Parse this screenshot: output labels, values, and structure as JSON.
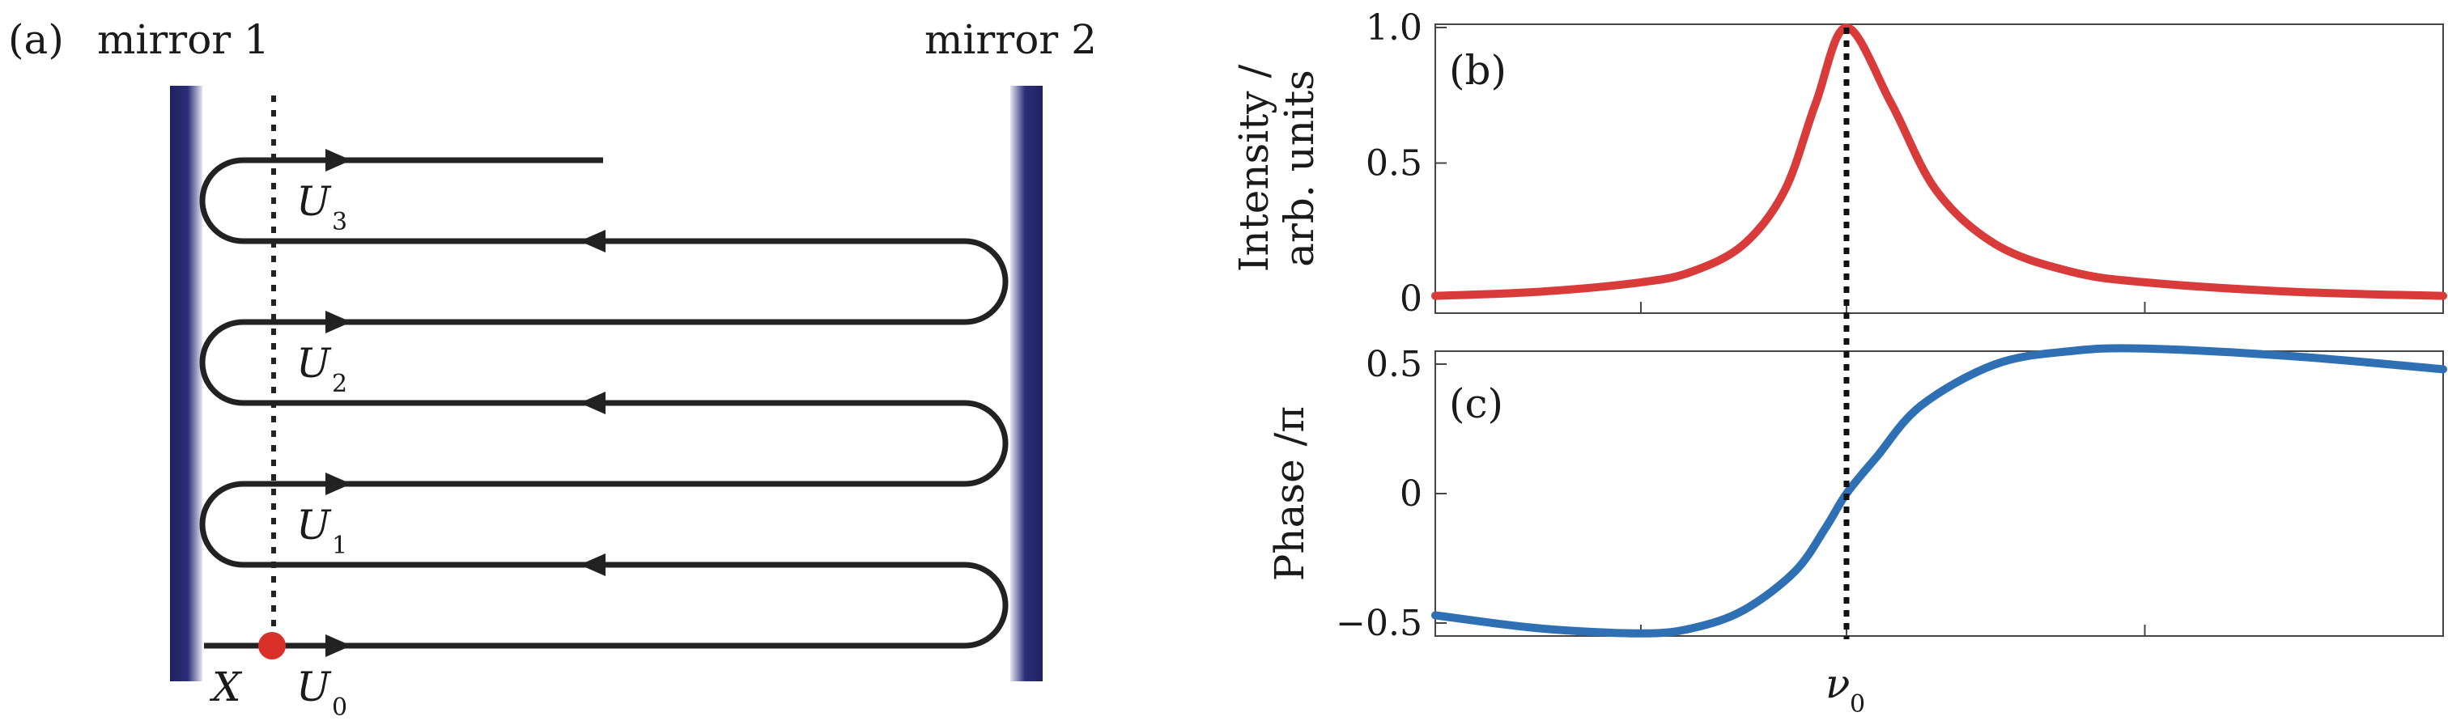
{
  "panel_a": {
    "panel_label": "(a)",
    "mirror1_label": "mirror 1",
    "mirror2_label": "mirror 2",
    "point_label": "X",
    "field_symbol": "U",
    "field_subscripts": [
      "0",
      "1",
      "2",
      "3"
    ],
    "mirror_color": "#1f2160",
    "path_color": "#222222",
    "point_color": "#d9302a"
  },
  "chart_data": [
    {
      "type": "line",
      "panel_label": "(b)",
      "xlabel": "",
      "ylabel_line1": "Intensity /",
      "ylabel_line2": "arb. units",
      "ylim": [
        0,
        1.0
      ],
      "yticks": [
        "0",
        "0.5",
        "1.0"
      ],
      "xticks": [
        {
          "value": 0,
          "label_symbol": "ν",
          "label_sub": "0"
        }
      ],
      "x": [
        -4.0,
        -3.0,
        -2.0,
        -1.5,
        -1.0,
        -0.6,
        -0.3,
        0.0,
        0.3,
        0.6,
        1.0,
        1.5,
        2.0,
        3.0,
        4.0
      ],
      "series": [
        {
          "values": [
            0.01,
            0.025,
            0.06,
            0.1,
            0.2,
            0.4,
            0.72,
            1.0,
            0.72,
            0.4,
            0.2,
            0.1,
            0.06,
            0.025,
            0.01
          ],
          "color": "#d93a3a"
        }
      ],
      "marker_line_at_x": 0,
      "grid": false
    },
    {
      "type": "line",
      "panel_label": "(c)",
      "xlabel": "",
      "ylabel": "Phase /π",
      "ylim": [
        -0.55,
        0.55
      ],
      "yticks": [
        "−0.5",
        "0",
        "0.5"
      ],
      "xticks": [
        {
          "value": 0,
          "label_symbol": "ν",
          "label_sub": "0"
        }
      ],
      "x": [
        -4.0,
        -3.0,
        -2.0,
        -1.5,
        -1.0,
        -0.5,
        -0.2,
        0.0,
        0.2,
        0.5,
        1.0,
        1.5,
        2.0,
        3.0,
        4.0
      ],
      "series": [
        {
          "values": [
            -0.47,
            -0.52,
            -0.54,
            -0.52,
            -0.45,
            -0.3,
            -0.13,
            0.0,
            0.14,
            0.34,
            0.5,
            0.55,
            0.56,
            0.53,
            0.48
          ],
          "color": "#2f6fb3"
        }
      ],
      "marker_line_at_x": 0,
      "grid": false
    }
  ]
}
